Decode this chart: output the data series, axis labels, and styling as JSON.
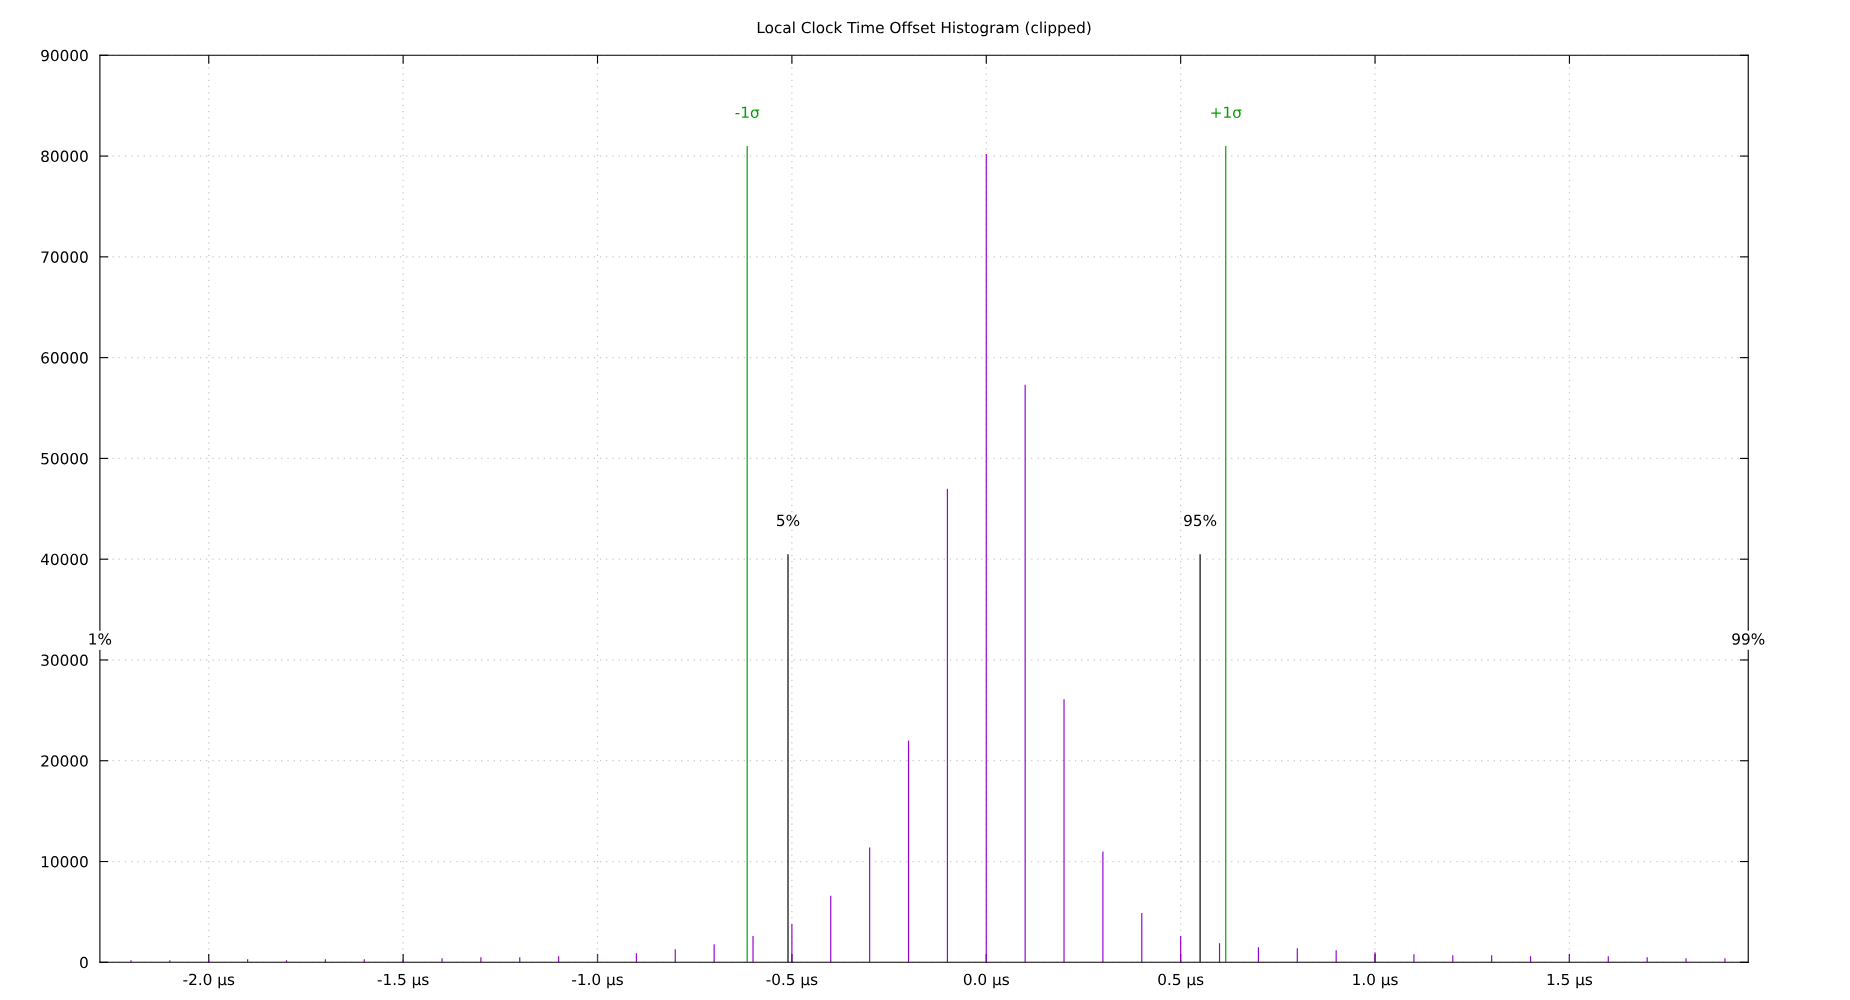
{
  "chart_data": {
    "type": "bar",
    "title": "Local Clock Time Offset Histogram (clipped)",
    "series": [
      {
        "color": "#9400d3",
        "x": [
          -2.2,
          -2.1,
          -2.0,
          -1.9,
          -1.8,
          -1.7,
          -1.6,
          -1.5,
          -1.4,
          -1.3,
          -1.2,
          -1.1,
          -1.0,
          -0.9,
          -0.8,
          -0.7,
          -0.6,
          -0.5,
          -0.4,
          -0.3,
          -0.2,
          -0.1,
          0.0,
          0.1,
          0.2,
          0.3,
          0.4,
          0.5,
          0.6,
          0.7,
          0.8,
          0.9,
          1.0,
          1.1,
          1.2,
          1.3,
          1.4,
          1.5,
          1.6,
          1.7,
          1.8,
          1.9
        ],
        "values": [
          200,
          200,
          300,
          300,
          200,
          300,
          300,
          300,
          400,
          500,
          500,
          600,
          800,
          900,
          1300,
          1800,
          2600,
          3800,
          6600,
          11400,
          22000,
          47000,
          80200,
          57300,
          26100,
          11000,
          4900,
          2600,
          1900,
          1500,
          1400,
          1200,
          1000,
          800,
          700,
          700,
          600,
          800,
          600,
          500,
          400,
          400
        ]
      },
      {
        "color": "#009e00",
        "x": [
          -0.615,
          0.616
        ],
        "values": [
          81000,
          81000
        ]
      },
      {
        "color": "#000000",
        "x": [
          -0.51,
          0.55
        ],
        "values": [
          40500,
          40500
        ]
      }
    ],
    "xlim": [
      -2.28,
      1.96
    ],
    "xticks": [
      {
        "value": -2.0,
        "label": "-2.0 μs"
      },
      {
        "value": -1.5,
        "label": "-1.5 μs"
      },
      {
        "value": -1.0,
        "label": "-1.0 μs"
      },
      {
        "value": -0.5,
        "label": "-0.5 μs"
      },
      {
        "value": 0.0,
        "label": "0.0 μs"
      },
      {
        "value": 0.5,
        "label": "0.5 μs"
      },
      {
        "value": 1.0,
        "label": "1.0 μs"
      },
      {
        "value": 1.5,
        "label": "1.5 μs"
      }
    ],
    "ylim": [
      0,
      90000
    ],
    "yticks": [
      0,
      10000,
      20000,
      30000,
      40000,
      50000,
      60000,
      70000,
      80000,
      90000
    ],
    "grid": true,
    "annotations": [
      {
        "text": "-1σ",
        "x": -0.615,
        "y": 81000
      },
      {
        "text": "+1σ",
        "x": 0.616,
        "y": 81000
      },
      {
        "text": "5%",
        "x": -0.51,
        "y": 40500
      },
      {
        "text": "95%",
        "x": 0.55,
        "y": 40500
      },
      "1%",
      "99%"
    ]
  }
}
